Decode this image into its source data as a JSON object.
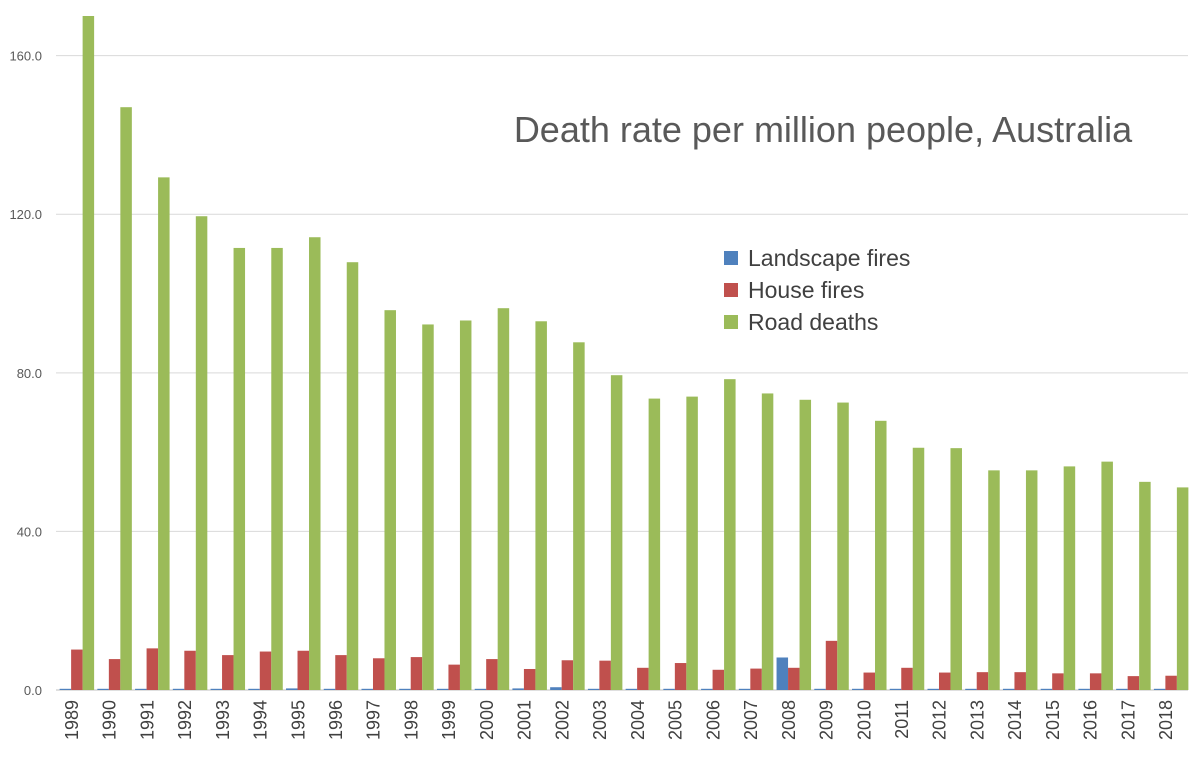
{
  "chart_data": {
    "type": "bar",
    "title": "Death rate per million people, Australia",
    "xlabel": "",
    "ylabel": "",
    "ylim": [
      0,
      170
    ],
    "yticks": [
      0,
      40,
      80,
      120,
      160
    ],
    "ytick_labels": [
      "0.0",
      "40.0",
      "80.0",
      "120.0",
      "160.0"
    ],
    "grid": true,
    "legend_position": "right",
    "categories": [
      "1989",
      "1990",
      "1991",
      "1992",
      "1993",
      "1994",
      "1995",
      "1996",
      "1997",
      "1998",
      "1999",
      "2000",
      "2001",
      "2002",
      "2003",
      "2004",
      "2005",
      "2006",
      "2007",
      "2008",
      "2009",
      "2010",
      "2011",
      "2012",
      "2013",
      "2014",
      "2015",
      "2016",
      "2017",
      "2018"
    ],
    "series": [
      {
        "name": "Landscape fires",
        "color": "#4f81bd",
        "values": [
          0.3,
          0.1,
          0.3,
          0.1,
          0.3,
          0.1,
          0.4,
          0.3,
          0.3,
          0.3,
          0.3,
          0.3,
          0.4,
          0.7,
          0.3,
          0.3,
          0.3,
          0.3,
          0.3,
          8.2,
          0.3,
          0.3,
          0.3,
          0.3,
          0.3,
          0.3,
          0.3,
          0.3,
          0.3,
          0.3
        ]
      },
      {
        "name": "House fires",
        "color": "#c0504d",
        "values": [
          10.2,
          7.8,
          10.5,
          9.9,
          8.8,
          9.7,
          9.9,
          8.8,
          8.0,
          8.3,
          6.4,
          7.8,
          5.3,
          7.5,
          7.4,
          5.6,
          6.8,
          5.1,
          5.4,
          5.6,
          12.4,
          4.4,
          5.6,
          4.4,
          4.5,
          4.5,
          4.2,
          4.2,
          3.5,
          3.6
        ]
      },
      {
        "name": "Road deaths",
        "color": "#9bbb59",
        "values": [
          170.0,
          147.0,
          129.3,
          119.5,
          111.5,
          111.5,
          114.2,
          107.9,
          95.8,
          92.2,
          93.2,
          96.3,
          93.0,
          87.7,
          79.4,
          73.5,
          74.0,
          78.4,
          74.8,
          73.2,
          72.5,
          67.9,
          61.1,
          61.0,
          55.4,
          55.4,
          56.4,
          57.6,
          52.5,
          51.1
        ]
      }
    ]
  }
}
